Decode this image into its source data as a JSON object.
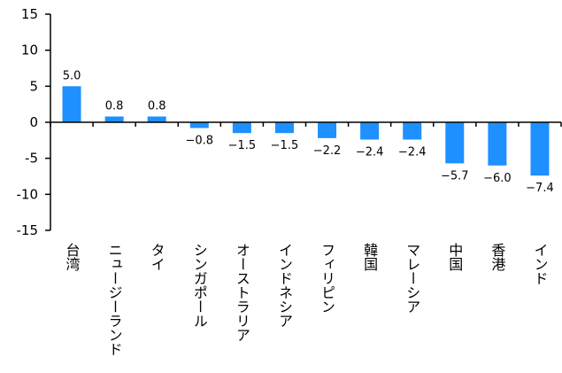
{
  "chart_data": {
    "type": "bar",
    "categories": [
      "台湾",
      "ニュージーランド",
      "タイ",
      "シンガポール",
      "オーストラリア",
      "インドネシア",
      "フィリピン",
      "韓国",
      "マレーシア",
      "中国",
      "香港",
      "インド"
    ],
    "values": [
      5.0,
      0.8,
      0.8,
      -0.8,
      -1.5,
      -1.5,
      -2.2,
      -2.4,
      -2.4,
      -5.7,
      -6.0,
      -7.4
    ],
    "value_labels": [
      "5.0",
      "0.8",
      "0.8",
      "-0.8",
      "-1.5",
      "-1.5",
      "-2.2",
      "-2.4",
      "-2.4",
      "-5.7",
      "-6.0",
      "-7.4"
    ],
    "title": "",
    "xlabel": "",
    "ylabel": "",
    "ylim": [
      -15,
      15
    ],
    "yticks": [
      15,
      10,
      5,
      0,
      -5,
      -10,
      -15
    ],
    "grid": false,
    "legend": "none",
    "bar_color": "#1e90ff"
  }
}
